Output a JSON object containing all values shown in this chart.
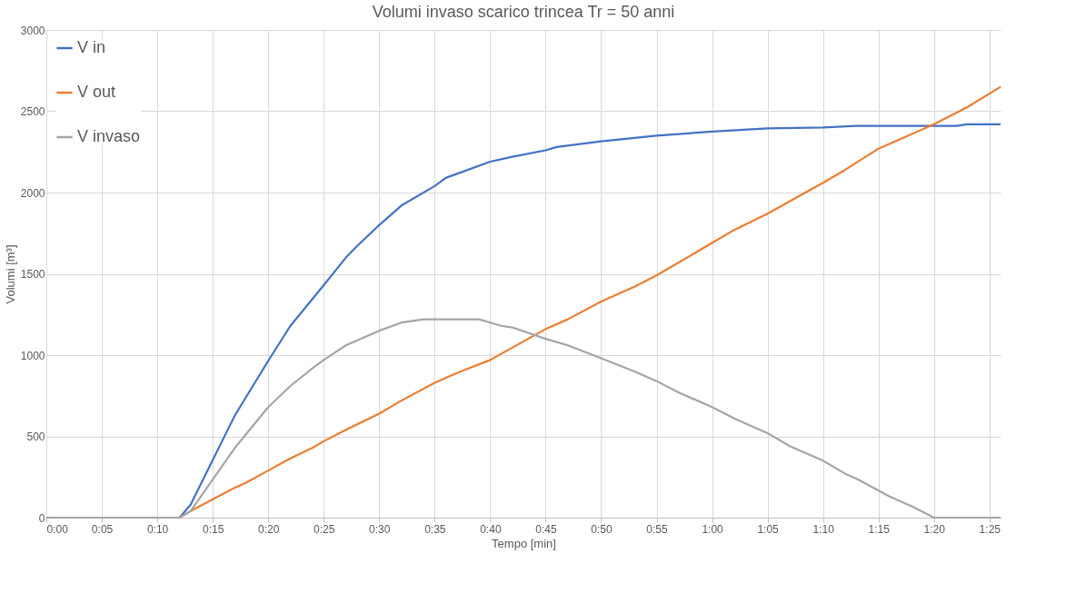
{
  "chart_data": {
    "type": "line",
    "title": "Volumi invaso scarico trincea Tr = 50 anni",
    "xlabel": "Tempo [min]",
    "ylabel": "Volumi [m³]",
    "xlim": [
      0,
      86
    ],
    "ylim": [
      0,
      3000
    ],
    "yticks": [
      0,
      500,
      1000,
      1500,
      2000,
      2500,
      3000
    ],
    "xticks": [
      {
        "value": 0,
        "label": "0:00"
      },
      {
        "value": 5,
        "label": "0:05"
      },
      {
        "value": 10,
        "label": "0:10"
      },
      {
        "value": 15,
        "label": "0:15"
      },
      {
        "value": 20,
        "label": "0:20"
      },
      {
        "value": 25,
        "label": "0:25"
      },
      {
        "value": 30,
        "label": "0:30"
      },
      {
        "value": 35,
        "label": "0:35"
      },
      {
        "value": 40,
        "label": "0:40"
      },
      {
        "value": 45,
        "label": "0:45"
      },
      {
        "value": 50,
        "label": "0:50"
      },
      {
        "value": 55,
        "label": "0:55"
      },
      {
        "value": 60,
        "label": "1:00"
      },
      {
        "value": 65,
        "label": "1:05"
      },
      {
        "value": 70,
        "label": "1:10"
      },
      {
        "value": 75,
        "label": "1:15"
      },
      {
        "value": 80,
        "label": "1:20"
      },
      {
        "value": 85,
        "label": "1:25"
      }
    ],
    "grid": true,
    "legend": "top left",
    "marker": "none",
    "line_style": "solid",
    "series": [
      {
        "name": "V in",
        "color": "#4472c4",
        "x": [
          0,
          12,
          13,
          17,
          20,
          22,
          25,
          27,
          28,
          30,
          32,
          35,
          36,
          40,
          42,
          45,
          46,
          50,
          55,
          60,
          65,
          70,
          73,
          82,
          83,
          86
        ],
        "values": [
          0,
          0,
          80,
          630,
          965,
          1180,
          1430,
          1600,
          1670,
          1800,
          1920,
          2040,
          2090,
          2190,
          2220,
          2260,
          2280,
          2315,
          2350,
          2375,
          2395,
          2400,
          2410,
          2410,
          2420,
          2420
        ]
      },
      {
        "name": "V out",
        "color": "#ed7d31",
        "x": [
          0,
          12,
          13,
          17,
          18,
          20,
          22,
          24,
          25,
          27,
          30,
          32,
          35,
          37,
          40,
          45,
          47,
          50,
          53,
          55,
          60,
          62,
          65,
          70,
          72,
          75,
          77,
          80,
          82,
          83,
          86
        ],
        "values": [
          0,
          0,
          40,
          185,
          215,
          290,
          365,
          430,
          470,
          540,
          640,
          720,
          830,
          890,
          970,
          1160,
          1220,
          1330,
          1420,
          1490,
          1690,
          1770,
          1870,
          2060,
          2140,
          2270,
          2330,
          2420,
          2490,
          2525,
          2650
        ]
      },
      {
        "name": "V invaso",
        "color": "#a5a5a5",
        "x": [
          0,
          12,
          13,
          17,
          20,
          22,
          24,
          25,
          27,
          30,
          32,
          34,
          39,
          41,
          42,
          45,
          47,
          50,
          53,
          55,
          57,
          60,
          62,
          63,
          65,
          67,
          70,
          72,
          73,
          76,
          78,
          80,
          86
        ],
        "values": [
          0,
          0,
          40,
          430,
          680,
          810,
          920,
          970,
          1060,
          1150,
          1200,
          1220,
          1220,
          1180,
          1170,
          1100,
          1060,
          980,
          900,
          840,
          770,
          680,
          610,
          580,
          520,
          440,
          350,
          270,
          240,
          130,
          70,
          0,
          0
        ]
      }
    ]
  }
}
